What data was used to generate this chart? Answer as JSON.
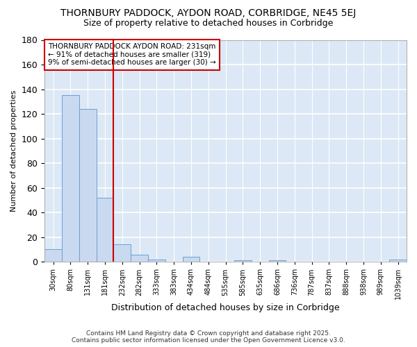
{
  "title_line1": "THORNBURY PADDOCK, AYDON ROAD, CORBRIDGE, NE45 5EJ",
  "title_line2": "Size of property relative to detached houses in Corbridge",
  "xlabel": "Distribution of detached houses by size in Corbridge",
  "ylabel": "Number of detached properties",
  "bar_color": "#c9d9ef",
  "bar_edge_color": "#6a9fd8",
  "background_color": "#dce8f5",
  "grid_color": "#ffffff",
  "fig_background": "#ffffff",
  "categories": [
    "30sqm",
    "80sqm",
    "131sqm",
    "181sqm",
    "232sqm",
    "282sqm",
    "333sqm",
    "383sqm",
    "434sqm",
    "484sqm",
    "535sqm",
    "585sqm",
    "635sqm",
    "686sqm",
    "736sqm",
    "787sqm",
    "837sqm",
    "888sqm",
    "938sqm",
    "989sqm",
    "1039sqm"
  ],
  "values": [
    10,
    135,
    124,
    52,
    14,
    6,
    2,
    0,
    4,
    0,
    0,
    1,
    0,
    1,
    0,
    0,
    0,
    0,
    0,
    0,
    2
  ],
  "vline_x": 3.5,
  "vline_color": "#cc0000",
  "annotation_text": "THORNBURY PADDOCK AYDON ROAD: 231sqm\n← 91% of detached houses are smaller (319)\n9% of semi-detached houses are larger (30) →",
  "annotation_box_color": "#ffffff",
  "annotation_box_edge": "#cc0000",
  "ylim": [
    0,
    180
  ],
  "yticks": [
    0,
    20,
    40,
    60,
    80,
    100,
    120,
    140,
    160,
    180
  ],
  "footer_line1": "Contains HM Land Registry data © Crown copyright and database right 2025.",
  "footer_line2": "Contains public sector information licensed under the Open Government Licence v3.0."
}
